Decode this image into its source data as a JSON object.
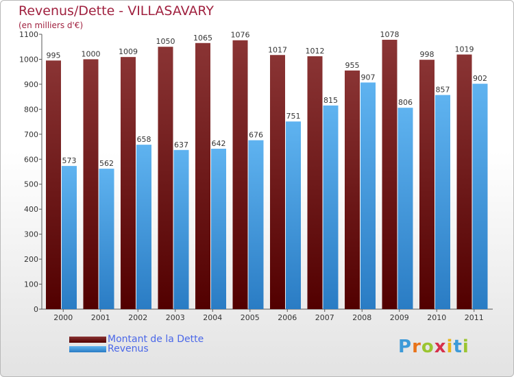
{
  "title": "Revenus/Dette - VILLASAVARY",
  "subtitle": "(en milliers d'€)",
  "logo": {
    "text": "Proxiti"
  },
  "legend": [
    {
      "label": "Montant de la Dette",
      "color": "#6b1414"
    },
    {
      "label": "Revenus",
      "color": "#4ba3e8"
    }
  ],
  "chart_data": {
    "type": "bar",
    "categories": [
      "2000",
      "2001",
      "2002",
      "2003",
      "2004",
      "2005",
      "2006",
      "2007",
      "2008",
      "2009",
      "2010",
      "2011"
    ],
    "series": [
      {
        "name": "Montant de la Dette",
        "color": "#6b1414",
        "values": [
          995,
          1000,
          1009,
          1050,
          1065,
          1076,
          1017,
          1012,
          955,
          1078,
          998,
          1019
        ]
      },
      {
        "name": "Revenus",
        "color": "#4ba3e8",
        "values": [
          573,
          562,
          658,
          637,
          642,
          676,
          751,
          815,
          907,
          806,
          857,
          902
        ]
      }
    ],
    "ylim": [
      0,
      1100
    ],
    "yticks": [
      0,
      100,
      200,
      300,
      400,
      500,
      600,
      700,
      800,
      900,
      1000,
      1100
    ],
    "grid": false,
    "legend_position": "bottom-left"
  }
}
